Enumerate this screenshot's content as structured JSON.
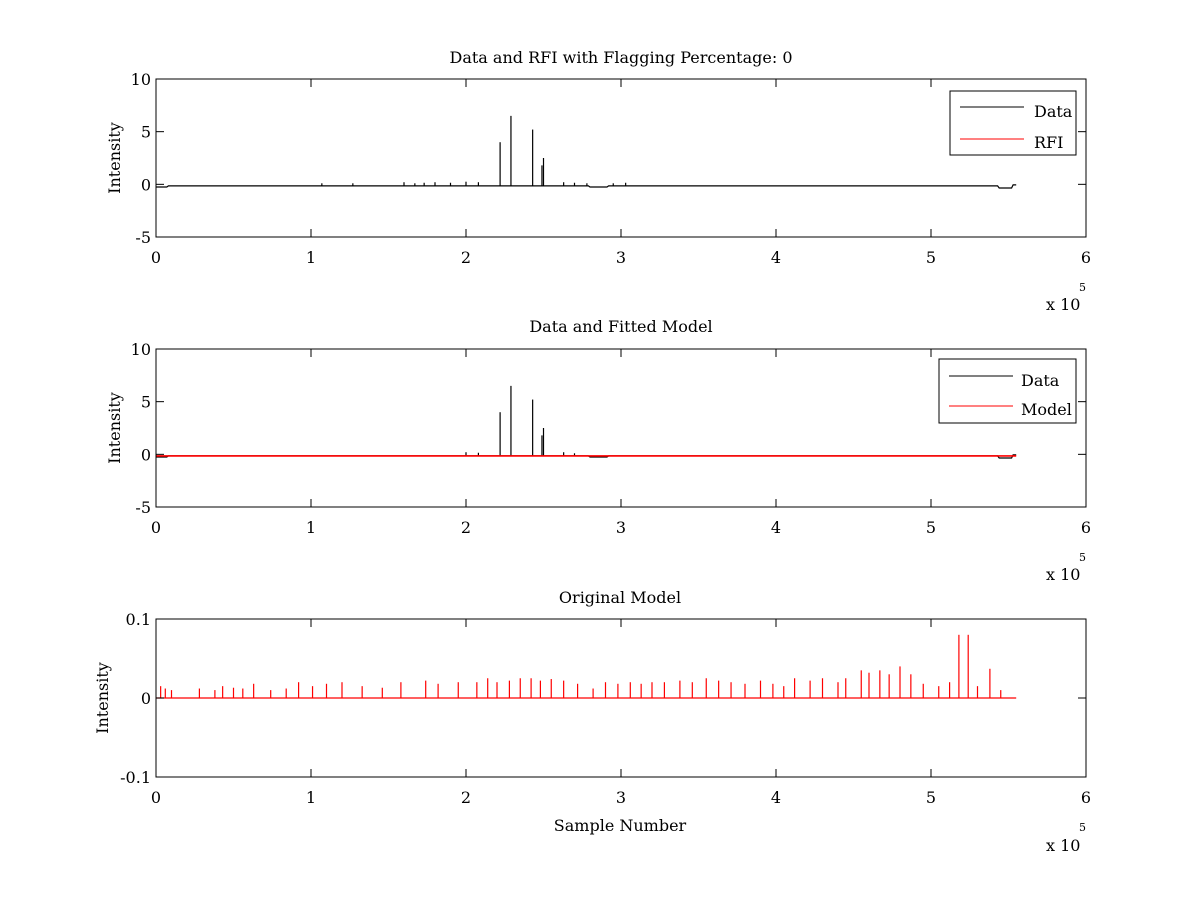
{
  "chart_data": [
    {
      "type": "line",
      "title": "Data and RFI with Flagging Percentage: 0",
      "xlabel": "",
      "ylabel": "Intensity",
      "xlim": [
        0,
        6
      ],
      "ylim": [
        -5,
        10
      ],
      "xticks": [
        "0",
        "1",
        "2",
        "3",
        "4",
        "5",
        "6"
      ],
      "yticks": [
        "-5",
        "0",
        "5",
        "10"
      ],
      "x_exponent": "x 10",
      "x_exponent_power": "5",
      "x_units": "x 10^5 samples",
      "legend": {
        "placement": "top-right",
        "entries": [
          "Data",
          "RFI"
        ]
      },
      "series": [
        {
          "name": "Data",
          "color": "#000000",
          "baseline": -0.15,
          "baseline_range": [
            0,
            5.55
          ],
          "dips": [
            [
              0.0,
              0.1,
              0.0
            ],
            [
              0.05,
              0.12,
              -0.25
            ],
            [
              0.2,
              0.25,
              -0.15
            ],
            [
              2.85,
              0.12,
              -0.25
            ],
            [
              5.48,
              0.1,
              -0.35
            ],
            [
              5.55,
              0.05,
              -0.05
            ]
          ],
          "spikes": [
            [
              2.22,
              4.0
            ],
            [
              2.29,
              6.5
            ],
            [
              2.43,
              5.2
            ],
            [
              2.5,
              2.5
            ],
            [
              2.49,
              1.8
            ],
            [
              1.07,
              0.1
            ],
            [
              1.27,
              0.1
            ],
            [
              1.6,
              0.2
            ],
            [
              1.67,
              0.1
            ],
            [
              1.73,
              0.15
            ],
            [
              1.8,
              0.2
            ],
            [
              1.9,
              0.15
            ],
            [
              2.0,
              0.25
            ],
            [
              2.08,
              0.2
            ],
            [
              2.63,
              0.2
            ],
            [
              2.7,
              0.15
            ],
            [
              2.78,
              0.1
            ],
            [
              2.95,
              0.1
            ],
            [
              3.03,
              0.15
            ]
          ]
        },
        {
          "name": "RFI",
          "color": "#ff0000",
          "baseline": null,
          "spikes": []
        }
      ]
    },
    {
      "type": "line",
      "title": "Data and Fitted Model",
      "xlabel": "",
      "ylabel": "Intensity",
      "xlim": [
        0,
        6
      ],
      "ylim": [
        -5,
        10
      ],
      "xticks": [
        "0",
        "1",
        "2",
        "3",
        "4",
        "5",
        "6"
      ],
      "yticks": [
        "-5",
        "0",
        "5",
        "10"
      ],
      "x_exponent": "x 10",
      "x_exponent_power": "5",
      "x_units": "x 10^5 samples",
      "legend": {
        "placement": "top-right",
        "entries": [
          "Data",
          "Model"
        ]
      },
      "series": [
        {
          "name": "Data",
          "color": "#000000",
          "baseline": -0.15,
          "baseline_range": [
            0,
            5.55
          ],
          "dips": [
            [
              0.0,
              0.1,
              0.0
            ],
            [
              0.05,
              0.12,
              -0.25
            ],
            [
              0.2,
              0.25,
              -0.15
            ],
            [
              2.85,
              0.12,
              -0.25
            ],
            [
              5.48,
              0.1,
              -0.35
            ],
            [
              5.55,
              0.05,
              -0.05
            ]
          ],
          "spikes": [
            [
              2.22,
              4.0
            ],
            [
              2.29,
              6.5
            ],
            [
              2.43,
              5.2
            ],
            [
              2.5,
              2.5
            ],
            [
              2.49,
              1.8
            ],
            [
              2.0,
              0.2
            ],
            [
              2.08,
              0.15
            ],
            [
              2.63,
              0.2
            ],
            [
              2.7,
              0.1
            ]
          ]
        },
        {
          "name": "Model",
          "color": "#ff0000",
          "baseline": -0.15,
          "baseline_range": [
            0,
            5.55
          ],
          "dips": [],
          "spikes": []
        }
      ]
    },
    {
      "type": "line",
      "title": "Original Model",
      "xlabel": "Sample Number",
      "ylabel": "Intensity",
      "xlim": [
        0,
        6
      ],
      "ylim": [
        -0.1,
        0.1
      ],
      "xticks": [
        "0",
        "1",
        "2",
        "3",
        "4",
        "5",
        "6"
      ],
      "yticks": [
        "-0.1",
        "0",
        "0.1"
      ],
      "x_exponent": "x 10",
      "x_exponent_power": "5",
      "x_units": "x 10^5 samples",
      "legend": null,
      "series": [
        {
          "name": "",
          "color": "#ff0000",
          "baseline": 0.0,
          "baseline_range": [
            0,
            5.55
          ],
          "dips": [],
          "spikes": [
            [
              0.03,
              0.015
            ],
            [
              0.06,
              0.012
            ],
            [
              0.1,
              0.01
            ],
            [
              0.28,
              0.012
            ],
            [
              0.38,
              0.01
            ],
            [
              0.43,
              0.015
            ],
            [
              0.5,
              0.013
            ],
            [
              0.56,
              0.012
            ],
            [
              0.63,
              0.018
            ],
            [
              0.74,
              0.01
            ],
            [
              0.84,
              0.012
            ],
            [
              0.92,
              0.02
            ],
            [
              1.01,
              0.015
            ],
            [
              1.1,
              0.018
            ],
            [
              1.2,
              0.02
            ],
            [
              1.33,
              0.015
            ],
            [
              1.46,
              0.013
            ],
            [
              1.58,
              0.02
            ],
            [
              1.74,
              0.022
            ],
            [
              1.82,
              0.018
            ],
            [
              1.95,
              0.02
            ],
            [
              2.07,
              0.02
            ],
            [
              2.14,
              0.025
            ],
            [
              2.2,
              0.02
            ],
            [
              2.28,
              0.022
            ],
            [
              2.35,
              0.025
            ],
            [
              2.42,
              0.025
            ],
            [
              2.48,
              0.022
            ],
            [
              2.55,
              0.024
            ],
            [
              2.63,
              0.022
            ],
            [
              2.72,
              0.018
            ],
            [
              2.82,
              0.012
            ],
            [
              2.9,
              0.02
            ],
            [
              2.98,
              0.018
            ],
            [
              3.06,
              0.02
            ],
            [
              3.13,
              0.018
            ],
            [
              3.2,
              0.02
            ],
            [
              3.28,
              0.02
            ],
            [
              3.38,
              0.022
            ],
            [
              3.46,
              0.02
            ],
            [
              3.55,
              0.025
            ],
            [
              3.63,
              0.022
            ],
            [
              3.71,
              0.02
            ],
            [
              3.8,
              0.018
            ],
            [
              3.9,
              0.022
            ],
            [
              3.98,
              0.018
            ],
            [
              4.05,
              0.015
            ],
            [
              4.12,
              0.025
            ],
            [
              4.22,
              0.022
            ],
            [
              4.3,
              0.025
            ],
            [
              4.4,
              0.02
            ],
            [
              4.45,
              0.025
            ],
            [
              4.55,
              0.035
            ],
            [
              4.6,
              0.032
            ],
            [
              4.67,
              0.035
            ],
            [
              4.73,
              0.03
            ],
            [
              4.8,
              0.04
            ],
            [
              4.87,
              0.03
            ],
            [
              4.95,
              0.018
            ],
            [
              5.05,
              0.015
            ],
            [
              5.12,
              0.02
            ],
            [
              5.18,
              0.08
            ],
            [
              5.24,
              0.08
            ],
            [
              5.3,
              0.015
            ],
            [
              5.38,
              0.037
            ],
            [
              5.45,
              0.01
            ]
          ]
        }
      ]
    }
  ]
}
